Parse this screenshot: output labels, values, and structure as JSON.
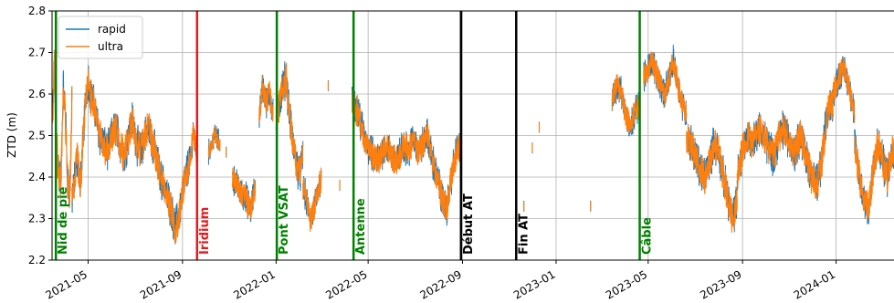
{
  "chart_data": {
    "type": "line",
    "title": "",
    "ylabel": "ZTD (m)",
    "xlabel": "",
    "ylim": [
      2.2,
      2.8
    ],
    "xlim": [
      "2021-03-15",
      "2024-03-20"
    ],
    "y_ticks": [
      2.2,
      2.3,
      2.4,
      2.5,
      2.6,
      2.7,
      2.8
    ],
    "y_tick_labels": [
      "2.2",
      "2.3",
      "2.4",
      "2.5",
      "2.6",
      "2.7",
      "2.8"
    ],
    "x_ticks": [
      "2021-05-01",
      "2021-09-01",
      "2022-01-01",
      "2022-05-01",
      "2022-09-01",
      "2023-01-01",
      "2023-05-01",
      "2023-09-01",
      "2024-01-01"
    ],
    "x_tick_labels": [
      "2021-05",
      "2021-09",
      "2022-01",
      "2022-05",
      "2022-09",
      "2023-01",
      "2023-05",
      "2023-09",
      "2024-01"
    ],
    "grid": true,
    "legend": {
      "placement": "top-left",
      "entries": [
        "rapid",
        "ultra"
      ]
    },
    "colors": {
      "rapid": "#1f77b4",
      "ultra": "#ff7f0e",
      "green": "#008000",
      "red": "#e41a1c",
      "black": "#000000"
    },
    "events": [
      {
        "date": "2021-03-20",
        "label": "Nid de pie",
        "color": "#008000"
      },
      {
        "date": "2021-09-20",
        "label": "Iridium",
        "color": "#e41a1c"
      },
      {
        "date": "2022-01-02",
        "label": "Pont VSAT",
        "color": "#008000"
      },
      {
        "date": "2022-04-12",
        "label": "Antenne",
        "color": "#008000"
      },
      {
        "date": "2022-08-30",
        "label": "Début AT",
        "color": "#000000"
      },
      {
        "date": "2022-11-10",
        "label": "Fin AT",
        "color": "#000000"
      },
      {
        "date": "2023-04-20",
        "label": "Câble",
        "color": "#008000"
      }
    ],
    "segments": [
      {
        "start": "2021-03-15",
        "end": "2021-04-10",
        "level": [
          2.52,
          2.66,
          2.48,
          2.42,
          2.38,
          2.62,
          2.55,
          2.4,
          2.35,
          2.58
        ],
        "amp": 0.05
      },
      {
        "start": "2021-04-10",
        "end": "2021-05-05",
        "level": [
          2.35,
          2.4,
          2.45,
          2.38,
          2.48,
          2.6,
          2.64,
          2.58
        ],
        "amp": 0.04
      },
      {
        "start": "2021-05-05",
        "end": "2021-07-25",
        "level": [
          2.6,
          2.56,
          2.5,
          2.48,
          2.46,
          2.5,
          2.52,
          2.48,
          2.45,
          2.5,
          2.54,
          2.48,
          2.46,
          2.5,
          2.52,
          2.47
        ],
        "amp": 0.04
      },
      {
        "start": "2021-07-25",
        "end": "2021-09-10",
        "level": [
          2.48,
          2.44,
          2.4,
          2.38,
          2.35,
          2.32,
          2.28,
          2.3,
          2.36,
          2.4,
          2.44
        ],
        "amp": 0.04
      },
      {
        "start": "2021-09-10",
        "end": "2021-09-20",
        "level": [
          2.42,
          2.46,
          2.52,
          2.48,
          2.45
        ],
        "amp": 0.03
      },
      {
        "start": "2021-10-05",
        "end": "2021-10-20",
        "level": [
          2.46,
          2.5,
          2.48
        ],
        "amp": 0.02
      },
      {
        "start": "2021-11-05",
        "end": "2021-12-05",
        "level": [
          2.4,
          2.38,
          2.36,
          2.35,
          2.32,
          2.38
        ],
        "amp": 0.03
      },
      {
        "start": "2021-12-10",
        "end": "2021-12-28",
        "level": [
          2.55,
          2.62,
          2.58,
          2.6,
          2.55
        ],
        "amp": 0.03
      },
      {
        "start": "2022-01-01",
        "end": "2022-02-05",
        "level": [
          2.52,
          2.58,
          2.62,
          2.64,
          2.55,
          2.48,
          2.44,
          2.4,
          2.45
        ],
        "amp": 0.04
      },
      {
        "start": "2022-02-05",
        "end": "2022-03-01",
        "level": [
          2.38,
          2.34,
          2.3,
          2.32,
          2.36,
          2.4
        ],
        "amp": 0.03
      },
      {
        "start": "2022-04-10",
        "end": "2022-07-05",
        "level": [
          2.58,
          2.56,
          2.52,
          2.48,
          2.46,
          2.44,
          2.45,
          2.48,
          2.46,
          2.44,
          2.45,
          2.48,
          2.46,
          2.5,
          2.46
        ],
        "amp": 0.035
      },
      {
        "start": "2022-07-05",
        "end": "2022-08-30",
        "level": [
          2.46,
          2.48,
          2.5,
          2.44,
          2.4,
          2.35,
          2.32,
          2.4,
          2.46,
          2.48
        ],
        "amp": 0.035
      },
      {
        "start": "2023-03-15",
        "end": "2023-04-20",
        "level": [
          2.58,
          2.62,
          2.6,
          2.55,
          2.52,
          2.56,
          2.58
        ],
        "amp": 0.03
      },
      {
        "start": "2023-04-25",
        "end": "2023-06-20",
        "level": [
          2.64,
          2.66,
          2.68,
          2.65,
          2.62,
          2.6,
          2.64,
          2.68,
          2.62,
          2.58,
          2.55
        ],
        "amp": 0.03
      },
      {
        "start": "2023-06-20",
        "end": "2023-08-25",
        "level": [
          2.5,
          2.48,
          2.45,
          2.42,
          2.4,
          2.44,
          2.48,
          2.46,
          2.4,
          2.35,
          2.3,
          2.34
        ],
        "amp": 0.04
      },
      {
        "start": "2023-08-25",
        "end": "2023-11-15",
        "level": [
          2.4,
          2.46,
          2.5,
          2.48,
          2.52,
          2.5,
          2.47,
          2.45,
          2.5,
          2.52,
          2.48,
          2.46,
          2.5
        ],
        "amp": 0.04
      },
      {
        "start": "2023-11-15",
        "end": "2023-12-28",
        "level": [
          2.5,
          2.46,
          2.4,
          2.38,
          2.44,
          2.56,
          2.58
        ],
        "amp": 0.04
      },
      {
        "start": "2023-12-28",
        "end": "2024-01-25",
        "level": [
          2.6,
          2.64,
          2.66,
          2.62,
          2.55
        ],
        "amp": 0.03
      },
      {
        "start": "2024-01-25",
        "end": "2024-03-20",
        "level": [
          2.48,
          2.4,
          2.35,
          2.32,
          2.42,
          2.48,
          2.44,
          2.4,
          2.46,
          2.48
        ],
        "amp": 0.04
      }
    ],
    "isolated_points": [
      {
        "date": "2021-10-15",
        "value": 2.51
      },
      {
        "date": "2021-10-28",
        "value": 2.46
      },
      {
        "date": "2022-03-10",
        "value": 2.62
      },
      {
        "date": "2022-03-25",
        "value": 2.38
      },
      {
        "date": "2022-11-20",
        "value": 2.33
      },
      {
        "date": "2022-12-01",
        "value": 2.47
      },
      {
        "date": "2022-12-10",
        "value": 2.52
      },
      {
        "date": "2023-02-15",
        "value": 2.33
      }
    ]
  }
}
